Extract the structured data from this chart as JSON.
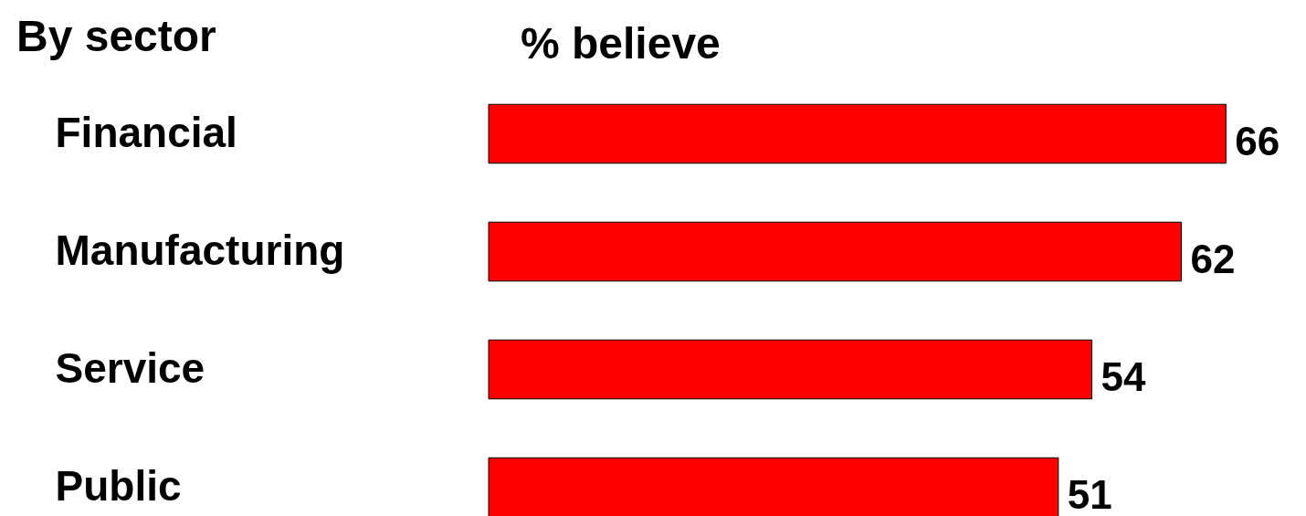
{
  "chart_data": {
    "type": "bar",
    "orientation": "horizontal",
    "title": "By sector",
    "subtitle": "% believe",
    "categories": [
      "Financial",
      "Manufacturing",
      "Service",
      "Public"
    ],
    "values": [
      66,
      62,
      54,
      51
    ],
    "color": "#ff0000",
    "data_labels": true
  }
}
